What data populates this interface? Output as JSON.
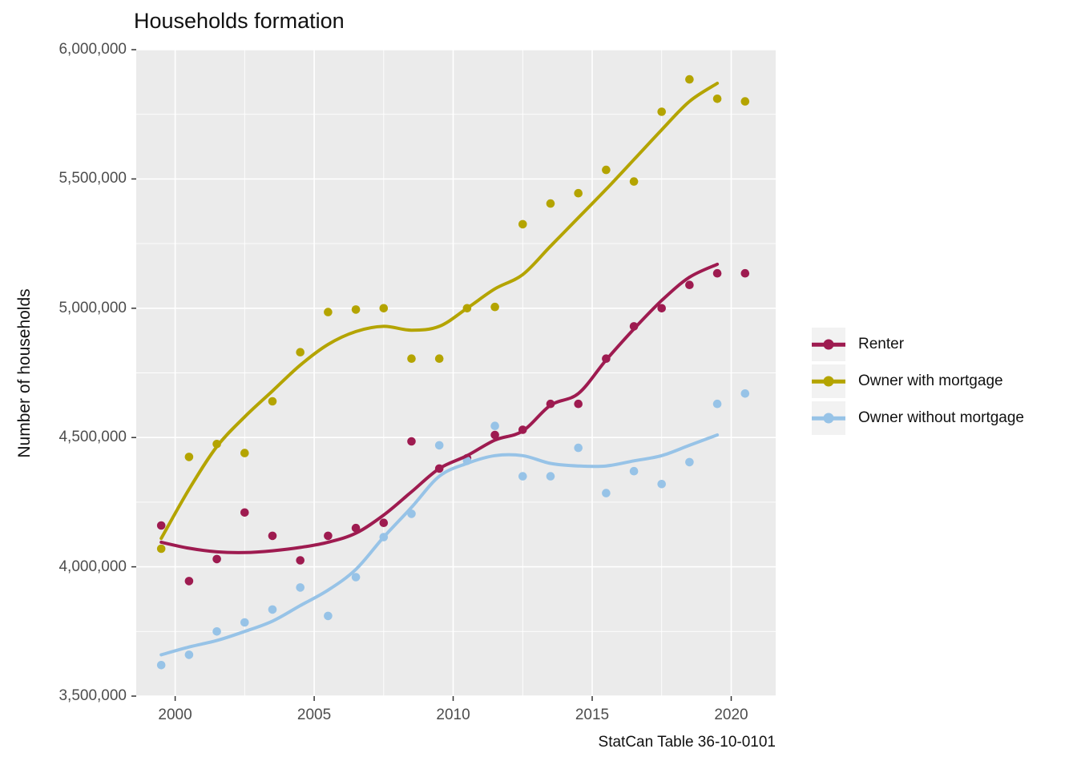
{
  "chart_data": {
    "type": "scatter",
    "title": "Households formation",
    "ylabel": "Number of households",
    "xlabel": "",
    "caption": "StatCan Table 36-10-0101",
    "panel_bg": "#EBEBEB",
    "grid_color": "#FFFFFF",
    "tick_color": "#333333",
    "tick_label_color": "#4D4D4D",
    "legend_position": "right",
    "legend_key_bg": "#F2F2F2",
    "x_domain": [
      1998.6,
      2021.6
    ],
    "y_domain": [
      3500000,
      6000000
    ],
    "x_major_ticks": [
      2000,
      2005,
      2010,
      2015,
      2020
    ],
    "x_tick_labels": [
      "2000",
      "2005",
      "2010",
      "2015",
      "2020"
    ],
    "x_minor_ticks": [
      2002.5,
      2007.5,
      2012.5,
      2017.5
    ],
    "y_major_ticks": [
      3500000,
      4000000,
      4500000,
      5000000,
      5500000,
      6000000
    ],
    "y_tick_labels": [
      "3,500,000",
      "4,000,000",
      "4,500,000",
      "5,000,000",
      "5,500,000",
      "6,000,000"
    ],
    "y_minor_ticks": [
      3750000,
      4250000,
      4750000,
      5250000,
      5750000
    ],
    "x": [
      1999.5,
      2000.5,
      2001.5,
      2002.5,
      2003.5,
      2004.5,
      2005.5,
      2006.5,
      2007.5,
      2008.5,
      2009.5,
      2010.5,
      2011.5,
      2012.5,
      2013.5,
      2014.5,
      2015.5,
      2016.5,
      2017.5,
      2018.5,
      2019.5,
      2020.5
    ],
    "smooth_x": [
      1999.5,
      2000.5,
      2001.5,
      2002.5,
      2003.5,
      2004.5,
      2005.5,
      2006.5,
      2007.5,
      2008.5,
      2009.5,
      2010.5,
      2011.5,
      2012.5,
      2013.5,
      2014.5,
      2015.5,
      2016.5,
      2017.5,
      2018.5,
      2019.5
    ],
    "series": [
      {
        "name": "Renter",
        "color": "#9E1B50",
        "points": [
          4160000,
          3945000,
          4030000,
          4210000,
          4120000,
          4025000,
          4120000,
          4150000,
          4170000,
          4485000,
          4380000,
          4420000,
          4510000,
          4530000,
          4630000,
          4630000,
          4805000,
          4930000,
          5000000,
          5090000,
          5135000,
          5135000
        ],
        "smooth": [
          4095000,
          4072000,
          4058000,
          4055000,
          4062000,
          4075000,
          4095000,
          4130000,
          4200000,
          4290000,
          4380000,
          4430000,
          4490000,
          4525000,
          4625000,
          4670000,
          4800000,
          4920000,
          5030000,
          5120000,
          5170000
        ]
      },
      {
        "name": "Owner with mortgage",
        "color": "#B4A400",
        "points": [
          4070000,
          4425000,
          4475000,
          4440000,
          4640000,
          4830000,
          4985000,
          4995000,
          5000000,
          4805000,
          4805000,
          5000000,
          5005000,
          5325000,
          5405000,
          5445000,
          5535000,
          5490000,
          5760000,
          5885000,
          5810000,
          5800000
        ],
        "smooth": [
          4110000,
          4300000,
          4465000,
          4580000,
          4680000,
          4780000,
          4860000,
          4910000,
          4930000,
          4915000,
          4930000,
          5000000,
          5075000,
          5130000,
          5240000,
          5350000,
          5460000,
          5575000,
          5690000,
          5800000,
          5870000
        ]
      },
      {
        "name": "Owner without mortgage",
        "color": "#97C3E7",
        "points": [
          3620000,
          3660000,
          3750000,
          3785000,
          3835000,
          3920000,
          3810000,
          3960000,
          4115000,
          4205000,
          4470000,
          4410000,
          4545000,
          4350000,
          4350000,
          4460000,
          4285000,
          4370000,
          4320000,
          4405000,
          4630000,
          4670000
        ],
        "smooth": [
          3660000,
          3690000,
          3715000,
          3750000,
          3790000,
          3850000,
          3910000,
          3990000,
          4115000,
          4230000,
          4350000,
          4400000,
          4430000,
          4430000,
          4400000,
          4390000,
          4390000,
          4410000,
          4430000,
          4470000,
          4510000
        ]
      }
    ]
  }
}
